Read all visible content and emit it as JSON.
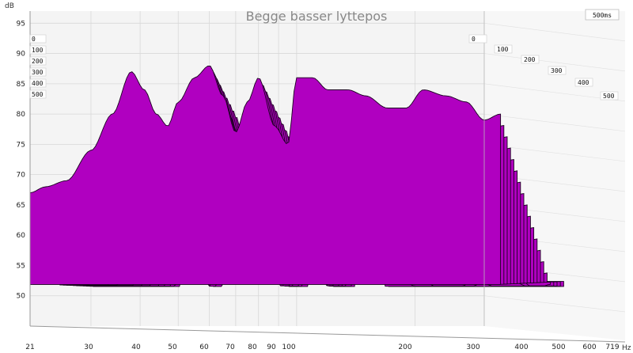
{
  "chart_data": {
    "type": "waterfall",
    "title": "Begge basser lyttepos",
    "y_unit": "dB",
    "x_unit": "Hz",
    "time_range_label": "500ms",
    "ylim": [
      45,
      97
    ],
    "xlim": [
      21,
      719
    ],
    "x_scale": "log",
    "y_ticks": [
      95,
      90,
      85,
      80,
      75,
      70,
      65,
      60,
      55,
      50
    ],
    "x_ticks": [
      "21",
      "30",
      "40",
      "50",
      "60",
      "70",
      "80",
      "90",
      "100",
      "200",
      "300",
      "400",
      "500",
      "600",
      "719"
    ],
    "time_ticks_left": [
      "0",
      "100",
      "200",
      "300",
      "400",
      "500"
    ],
    "time_ticks_right": [
      "0",
      "100",
      "200",
      "300",
      "400",
      "500"
    ],
    "fill_color": "#b000c0",
    "line_color": "#1a001f",
    "front_slice": {
      "time_ms": 0,
      "frequencies_hz": [
        21,
        23,
        26,
        30,
        34,
        38,
        41,
        44,
        47,
        50,
        55,
        60,
        65,
        70,
        75,
        80,
        88,
        95,
        100,
        110,
        120,
        135,
        150,
        170,
        190,
        210,
        240,
        270,
        300,
        330
      ],
      "levels_db": [
        67,
        68,
        69,
        74,
        80,
        87,
        84,
        80,
        78,
        82,
        86,
        88,
        83,
        77,
        82,
        86,
        78,
        75,
        86,
        86,
        84,
        84,
        83,
        81,
        81,
        84,
        83,
        82,
        79,
        80
      ]
    },
    "grid": true
  }
}
